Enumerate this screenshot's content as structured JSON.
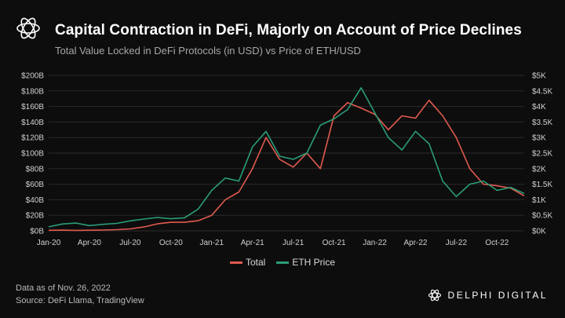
{
  "header": {
    "title": "Capital Contraction in DeFi, Majorly on Account of Price Declines",
    "subtitle": "Total Value Locked in DeFi Protocols (in USD) vs Price of ETH/USD"
  },
  "legend": {
    "items": [
      {
        "label": "Total",
        "color": "#e05a4f"
      },
      {
        "label": "ETH Price",
        "color": "#2a9d78"
      }
    ]
  },
  "footer": {
    "line1": "Data as of Nov. 26, 2022",
    "line2": "Source: DeFi Llama, TradingView"
  },
  "brand": {
    "name": "DELPHI DIGITAL"
  },
  "chart_data": {
    "type": "line",
    "x_ticks": [
      "Jan-20",
      "Apr-20",
      "Jul-20",
      "Oct-20",
      "Jan-21",
      "Apr-21",
      "Jul-21",
      "Oct-21",
      "Jan-22",
      "Apr-22",
      "Jul-22",
      "Oct-22"
    ],
    "y_left_ticks": [
      "$0B",
      "$20B",
      "$40B",
      "$60B",
      "$80B",
      "$100B",
      "$120B",
      "$140B",
      "$160B",
      "$180B",
      "$200B"
    ],
    "y_right_ticks": [
      "$0K",
      "$0.5K",
      "$1K",
      "$1.5K",
      "$2K",
      "$2.5K",
      "$3K",
      "$3.5K",
      "$4K",
      "$4.5K",
      "$5K"
    ],
    "y_left_range": [
      0,
      200
    ],
    "y_right_range": [
      0,
      5000
    ],
    "x_range_months": [
      0,
      35
    ],
    "series": [
      {
        "name": "Total",
        "axis": "left",
        "color": "#e05a4f",
        "points": [
          [
            0,
            0.7
          ],
          [
            1,
            0.9
          ],
          [
            2,
            0.6
          ],
          [
            3,
            0.8
          ],
          [
            4,
            1
          ],
          [
            5,
            1.5
          ],
          [
            6,
            2.5
          ],
          [
            7,
            5
          ],
          [
            8,
            9
          ],
          [
            9,
            11
          ],
          [
            10,
            11
          ],
          [
            11,
            13
          ],
          [
            12,
            20
          ],
          [
            13,
            40
          ],
          [
            14,
            50
          ],
          [
            15,
            80
          ],
          [
            16,
            120
          ],
          [
            17,
            92
          ],
          [
            18,
            82
          ],
          [
            19,
            100
          ],
          [
            20,
            80
          ],
          [
            21,
            148
          ],
          [
            22,
            165
          ],
          [
            23,
            158
          ],
          [
            24,
            150
          ],
          [
            25,
            130
          ],
          [
            26,
            148
          ],
          [
            27,
            145
          ],
          [
            28,
            168
          ],
          [
            29,
            148
          ],
          [
            30,
            120
          ],
          [
            31,
            80
          ],
          [
            32,
            60
          ],
          [
            33,
            58
          ],
          [
            34,
            55
          ],
          [
            35,
            45
          ]
        ]
      },
      {
        "name": "ETH Price",
        "axis": "right",
        "color": "#2a9d78",
        "points": [
          [
            0,
            130
          ],
          [
            1,
            220
          ],
          [
            2,
            250
          ],
          [
            3,
            170
          ],
          [
            4,
            210
          ],
          [
            5,
            240
          ],
          [
            6,
            320
          ],
          [
            7,
            380
          ],
          [
            8,
            430
          ],
          [
            9,
            390
          ],
          [
            10,
            420
          ],
          [
            11,
            700
          ],
          [
            12,
            1300
          ],
          [
            13,
            1700
          ],
          [
            14,
            1600
          ],
          [
            15,
            2700
          ],
          [
            16,
            3200
          ],
          [
            17,
            2400
          ],
          [
            18,
            2300
          ],
          [
            19,
            2500
          ],
          [
            20,
            3400
          ],
          [
            21,
            3600
          ],
          [
            22,
            3900
          ],
          [
            23,
            4600
          ],
          [
            24,
            3800
          ],
          [
            25,
            3000
          ],
          [
            26,
            2600
          ],
          [
            27,
            3200
          ],
          [
            28,
            2800
          ],
          [
            29,
            1600
          ],
          [
            30,
            1100
          ],
          [
            31,
            1500
          ],
          [
            32,
            1600
          ],
          [
            33,
            1300
          ],
          [
            34,
            1400
          ],
          [
            35,
            1200
          ]
        ]
      }
    ]
  }
}
